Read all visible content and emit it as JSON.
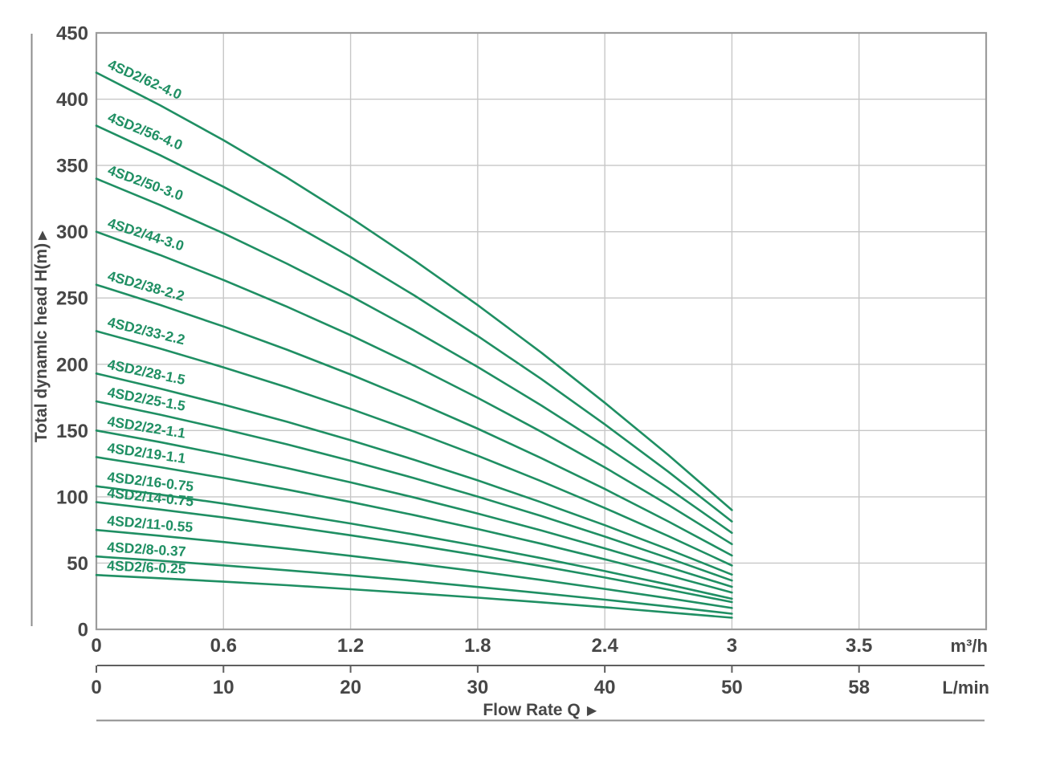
{
  "page": {
    "background": "#ffffff"
  },
  "icons": {
    "up_arrow": "▲",
    "right_arrow": "▶"
  },
  "chart_data": {
    "type": "line",
    "title": "",
    "legend": "none",
    "grid": true,
    "axes": {
      "y": {
        "label": "Total dynamlc head H(m)",
        "ticks": [
          0,
          50,
          100,
          150,
          200,
          250,
          300,
          350,
          400,
          450
        ],
        "min": 0,
        "max": 450
      },
      "x_m3h": {
        "unit": "m³/h",
        "ticks": [
          "0",
          "0.6",
          "1.2",
          "1.8",
          "2.4",
          "3",
          "3.5"
        ]
      },
      "x_lmin": {
        "unit": "L/min",
        "ticks": [
          "0",
          "10",
          "20",
          "30",
          "40",
          "50",
          "58"
        ]
      },
      "x": {
        "label": "Flow Rate Q"
      }
    },
    "x_values_m3h": [
      0,
      0.3,
      0.6,
      0.9,
      1.2,
      1.5,
      1.8,
      2.1,
      2.4,
      2.7,
      3.0
    ],
    "series": [
      {
        "label": "4SD2/62-4.0",
        "heads": [
          420,
          395.5,
          369.1,
          340.8,
          310.6,
          278.5,
          244.6,
          208.8,
          171.0,
          131.5,
          90.0
        ]
      },
      {
        "label": "4SD2/56-4.0",
        "heads": [
          380,
          357.8,
          333.9,
          308.3,
          281.0,
          252.0,
          221.3,
          188.9,
          154.7,
          118.9,
          81.4
        ]
      },
      {
        "label": "4SD2/50-3.0",
        "heads": [
          340,
          320.2,
          298.8,
          275.9,
          251.5,
          225.5,
          198.0,
          169.0,
          138.4,
          106.4,
          72.8
        ]
      },
      {
        "label": "4SD2/44-3.0",
        "heads": [
          300,
          282.5,
          263.6,
          243.4,
          221.9,
          199.0,
          174.7,
          149.1,
          122.2,
          93.9,
          64.3
        ]
      },
      {
        "label": "4SD2/38-2.2",
        "heads": [
          260,
          244.8,
          228.5,
          211.0,
          192.3,
          172.4,
          151.4,
          129.2,
          105.9,
          81.4,
          55.7
        ]
      },
      {
        "label": "4SD2/33-2.2",
        "heads": [
          225,
          211.9,
          197.7,
          182.6,
          166.4,
          149.2,
          131.0,
          111.8,
          91.6,
          70.4,
          48.2
        ]
      },
      {
        "label": "4SD2/28-1.5",
        "heads": [
          193,
          181.7,
          169.6,
          156.6,
          142.7,
          128.0,
          112.4,
          95.9,
          78.6,
          60.4,
          41.3
        ]
      },
      {
        "label": "4SD2/25-1.5",
        "heads": [
          172,
          162.0,
          151.1,
          139.6,
          127.2,
          114.1,
          100.2,
          85.5,
          70.0,
          53.8,
          36.8
        ]
      },
      {
        "label": "4SD2/22-1.1",
        "heads": [
          150,
          141.3,
          131.8,
          121.7,
          110.9,
          99.5,
          87.4,
          74.6,
          61.1,
          47.0,
          32.1
        ]
      },
      {
        "label": "4SD2/19-1.1",
        "heads": [
          130,
          122.4,
          114.2,
          105.5,
          96.1,
          86.2,
          75.7,
          64.6,
          52.9,
          40.7,
          27.8
        ]
      },
      {
        "label": "4SD2/16-0.75",
        "heads": [
          108,
          101.7,
          94.9,
          87.6,
          79.9,
          71.6,
          62.9,
          53.7,
          44.0,
          33.8,
          23.1
        ]
      },
      {
        "label": "4SD2/14-0.75",
        "heads": [
          96,
          90.4,
          84.4,
          77.9,
          71.0,
          63.7,
          55.9,
          47.7,
          39.1,
          30.0,
          20.6
        ]
      },
      {
        "label": "4SD2/11-0.55",
        "heads": [
          75,
          70.6,
          65.9,
          60.9,
          55.5,
          49.7,
          43.7,
          37.3,
          30.5,
          23.5,
          16.1
        ]
      },
      {
        "label": "4SD2/8-0.37",
        "heads": [
          55,
          51.8,
          48.3,
          44.6,
          40.7,
          36.5,
          32.0,
          27.3,
          22.4,
          17.2,
          11.8
        ]
      },
      {
        "label": "4SD2/6-0.25",
        "heads": [
          41,
          38.6,
          36.0,
          33.3,
          30.3,
          27.2,
          23.9,
          20.4,
          16.7,
          12.8,
          8.8
        ]
      }
    ],
    "colors": {
      "curve": "#1f8f63",
      "grid": "#c7c7c7",
      "border": "#9c9c9c",
      "text": "#474747",
      "ruler": "#5f5f5f",
      "decor": "#8d8d8d"
    }
  }
}
